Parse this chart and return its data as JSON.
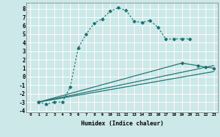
{
  "background_color": "#cce8e8",
  "grid_color": "#ffffff",
  "line_color": "#1a7070",
  "xlabel": "Humidex (Indice chaleur)",
  "xlim": [
    -0.5,
    23.5
  ],
  "ylim": [
    -4.2,
    8.7
  ],
  "xticks": [
    0,
    1,
    2,
    3,
    4,
    5,
    6,
    7,
    8,
    9,
    10,
    11,
    12,
    13,
    14,
    15,
    16,
    17,
    18,
    19,
    20,
    21,
    22,
    23
  ],
  "yticks": [
    -4,
    -3,
    -2,
    -1,
    0,
    1,
    2,
    3,
    4,
    5,
    6,
    7,
    8
  ],
  "series": [
    {
      "x": [
        1,
        2,
        3,
        4,
        5,
        6,
        7,
        8,
        9,
        10,
        11,
        12,
        13,
        14,
        15,
        16,
        17,
        18,
        19,
        20
      ],
      "y": [
        -3.0,
        -3.2,
        -3.0,
        -3.0,
        -1.2,
        3.4,
        5.0,
        6.3,
        6.8,
        7.7,
        8.1,
        7.8,
        6.5,
        6.4,
        6.6,
        5.8,
        4.4,
        4.45,
        4.45,
        4.45
      ],
      "style": "dotted",
      "marker": "D",
      "markersize": 2.5
    },
    {
      "x": [
        1,
        23
      ],
      "y": [
        -3.0,
        1.3
      ],
      "style": "solid",
      "marker": null,
      "markersize": 0
    },
    {
      "x": [
        1,
        23
      ],
      "y": [
        -3.0,
        0.6
      ],
      "style": "solid",
      "marker": null,
      "markersize": 0
    },
    {
      "x": [
        1,
        19,
        21,
        22,
        23
      ],
      "y": [
        -3.0,
        1.6,
        1.3,
        1.1,
        1.0
      ],
      "style": "solid",
      "marker": "D",
      "markersize": 2.5
    }
  ]
}
